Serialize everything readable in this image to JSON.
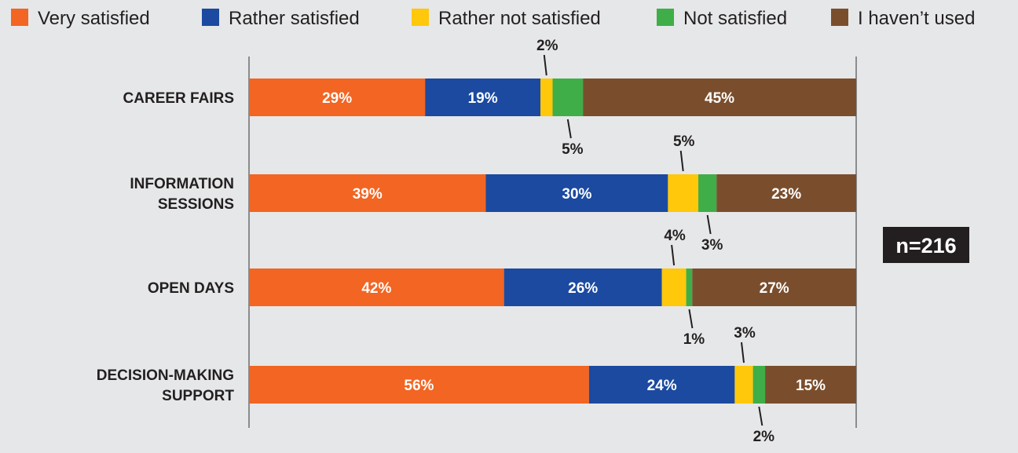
{
  "chart_data": {
    "type": "bar",
    "orientation": "horizontal",
    "stacked": true,
    "percent_scale": [
      0,
      100
    ],
    "legend_position": "top",
    "categories": [
      [
        "CAREER FAIRS"
      ],
      [
        "INFORMATION",
        "SESSIONS"
      ],
      [
        "OPEN DAYS"
      ],
      [
        "DECISION-MAKING",
        "SUPPORT"
      ]
    ],
    "series": [
      {
        "name": "Very satisfied",
        "color": "#f26522",
        "values": [
          29,
          39,
          42,
          56
        ]
      },
      {
        "name": "Rather satisfied",
        "color": "#1b4aa0",
        "values": [
          19,
          30,
          26,
          24
        ]
      },
      {
        "name": "Rather not satisfied",
        "color": "#ffc80a",
        "values": [
          2,
          5,
          4,
          3
        ]
      },
      {
        "name": "Not satisfied",
        "color": "#3fae49",
        "values": [
          5,
          3,
          1,
          2
        ]
      },
      {
        "name": "I haven’t used",
        "color": "#7a4e2d",
        "values": [
          45,
          23,
          27,
          15
        ]
      }
    ],
    "value_suffix": "%",
    "annotation": "n=216",
    "annotation_bg": "#231f20"
  }
}
